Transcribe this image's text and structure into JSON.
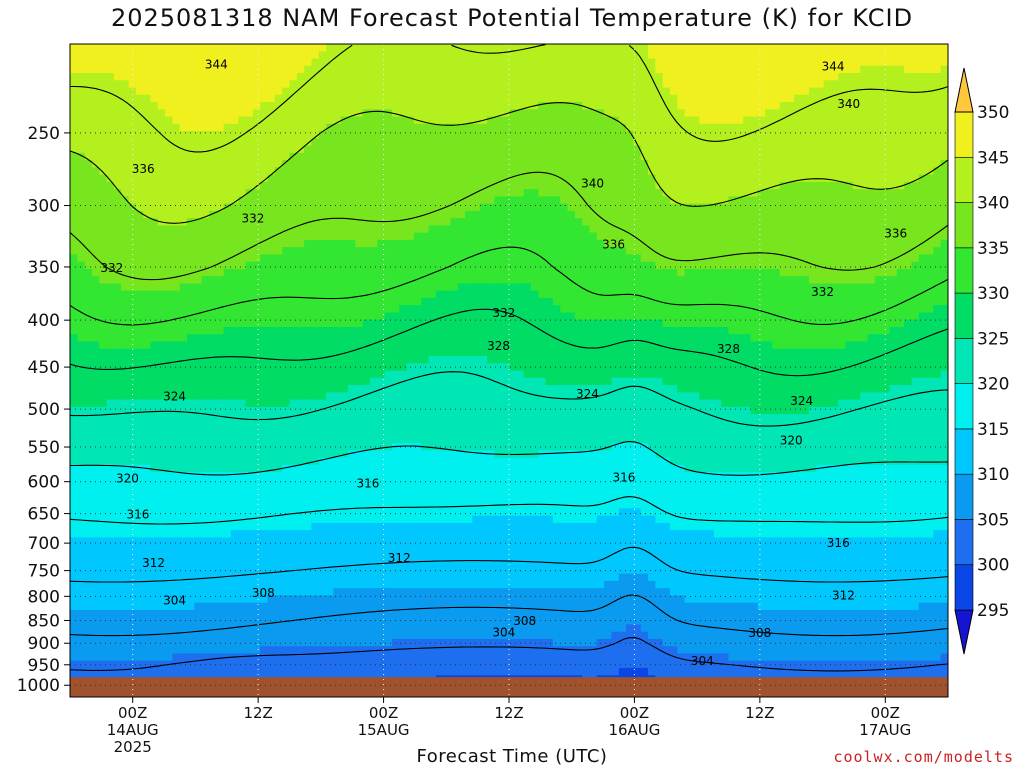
{
  "header": {
    "title": "2025081318 NAM Forecast Potential Temperature (K) for KCID"
  },
  "footer": {
    "credit": "coolwx.com/modelts"
  },
  "chart_data": {
    "type": "heatmap",
    "subtype": "time-height filled contour",
    "title": "2025081318 NAM Forecast Potential Temperature (K) for KCID",
    "xlabel": "Forecast Time (UTC)",
    "ylabel": "",
    "x_unit": "hours since 2025-08-13 18Z",
    "xlim": [
      0,
      84
    ],
    "ylim": [
      1030,
      200
    ],
    "y_scale": "log-pressure",
    "y_ticks": [
      250,
      300,
      350,
      400,
      450,
      500,
      550,
      600,
      650,
      700,
      750,
      800,
      850,
      900,
      950,
      1000
    ],
    "x_ticks": [
      {
        "x": 6,
        "label": "00Z",
        "sub": "14AUG",
        "sub2": "2025"
      },
      {
        "x": 18,
        "label": "12Z",
        "sub": "",
        "sub2": ""
      },
      {
        "x": 30,
        "label": "00Z",
        "sub": "15AUG",
        "sub2": ""
      },
      {
        "x": 42,
        "label": "12Z",
        "sub": "",
        "sub2": ""
      },
      {
        "x": 54,
        "label": "00Z",
        "sub": "16AUG",
        "sub2": ""
      },
      {
        "x": 66,
        "label": "12Z",
        "sub": "",
        "sub2": ""
      },
      {
        "x": 78,
        "label": "00Z",
        "sub": "17AUG",
        "sub2": ""
      }
    ],
    "grid": "dotted",
    "ground_pressure": 980,
    "ground_color": "#a0522d",
    "levels": [
      295,
      300,
      305,
      310,
      315,
      320,
      325,
      330,
      335,
      340,
      345,
      350
    ],
    "colorbar": {
      "labels": [
        "295",
        "300",
        "305",
        "310",
        "315",
        "320",
        "325",
        "330",
        "335",
        "340",
        "345",
        "350"
      ],
      "colors": [
        "#1414d2",
        "#0a46e6",
        "#1e6ef0",
        "#0a9bf0",
        "#00c8ff",
        "#00f0f0",
        "#00e6b4",
        "#00dc64",
        "#32e632",
        "#78e61e",
        "#b4f01e",
        "#f0f01e",
        "#ffc83c"
      ]
    },
    "base_theta_profile": [
      {
        "p": 1000,
        "theta": 301
      },
      {
        "p": 950,
        "theta": 303
      },
      {
        "p": 900,
        "theta": 306
      },
      {
        "p": 850,
        "theta": 308
      },
      {
        "p": 800,
        "theta": 310
      },
      {
        "p": 750,
        "theta": 312
      },
      {
        "p": 700,
        "theta": 314
      },
      {
        "p": 650,
        "theta": 316
      },
      {
        "p": 600,
        "theta": 318.5
      },
      {
        "p": 550,
        "theta": 321
      },
      {
        "p": 500,
        "theta": 323.5
      },
      {
        "p": 450,
        "theta": 326.5
      },
      {
        "p": 400,
        "theta": 330
      },
      {
        "p": 350,
        "theta": 334
      },
      {
        "p": 300,
        "theta": 337.5
      },
      {
        "p": 250,
        "theta": 341
      },
      {
        "p": 200,
        "theta": 346
      }
    ],
    "contour_values": [
      304,
      308,
      312,
      316,
      320,
      324,
      328,
      332,
      336,
      340,
      344
    ],
    "contour_labels": [
      {
        "x": 14.0,
        "p": 210,
        "text": "344"
      },
      {
        "x": 73.0,
        "p": 211,
        "text": "344"
      },
      {
        "x": 74.5,
        "p": 232,
        "text": "340"
      },
      {
        "x": 50.0,
        "p": 283,
        "text": "340"
      },
      {
        "x": 7.0,
        "p": 273,
        "text": "336"
      },
      {
        "x": 52.0,
        "p": 330,
        "text": "336"
      },
      {
        "x": 79.0,
        "p": 321,
        "text": "336"
      },
      {
        "x": 17.5,
        "p": 309,
        "text": "332"
      },
      {
        "x": 4.0,
        "p": 350,
        "text": "332"
      },
      {
        "x": 41.5,
        "p": 392,
        "text": "332"
      },
      {
        "x": 72.0,
        "p": 372,
        "text": "332"
      },
      {
        "x": 41.0,
        "p": 426,
        "text": "328"
      },
      {
        "x": 63.0,
        "p": 429,
        "text": "328"
      },
      {
        "x": 10.0,
        "p": 483,
        "text": "324"
      },
      {
        "x": 49.5,
        "p": 480,
        "text": "324"
      },
      {
        "x": 70.0,
        "p": 489,
        "text": "324"
      },
      {
        "x": 69.0,
        "p": 540,
        "text": "320"
      },
      {
        "x": 5.5,
        "p": 594,
        "text": "320"
      },
      {
        "x": 28.5,
        "p": 601,
        "text": "316"
      },
      {
        "x": 53.0,
        "p": 592,
        "text": "316"
      },
      {
        "x": 6.5,
        "p": 650,
        "text": "316"
      },
      {
        "x": 73.5,
        "p": 698,
        "text": "316"
      },
      {
        "x": 8.0,
        "p": 734,
        "text": "312"
      },
      {
        "x": 31.5,
        "p": 725,
        "text": "312"
      },
      {
        "x": 74.0,
        "p": 796,
        "text": "312"
      },
      {
        "x": 18.5,
        "p": 791,
        "text": "308"
      },
      {
        "x": 43.5,
        "p": 849,
        "text": "308"
      },
      {
        "x": 66.0,
        "p": 875,
        "text": "308"
      },
      {
        "x": 10.0,
        "p": 806,
        "text": "304"
      },
      {
        "x": 41.5,
        "p": 874,
        "text": "304"
      },
      {
        "x": 60.5,
        "p": 939,
        "text": "304"
      }
    ]
  }
}
